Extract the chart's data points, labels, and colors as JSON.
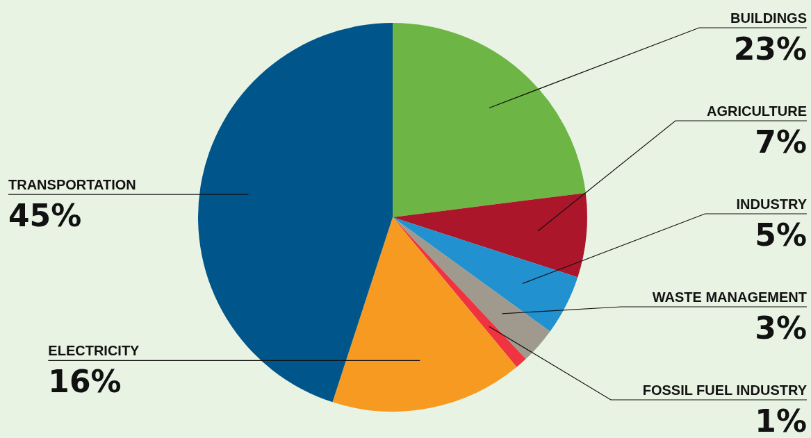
{
  "chart_data": {
    "type": "pie",
    "categories": [
      "BUILDINGS",
      "AGRICULTURE",
      "INDUSTRY",
      "WASTE MANAGEMENT",
      "FOSSIL FUEL INDUSTRY",
      "ELECTRICITY",
      "TRANSPORTATION"
    ],
    "values": [
      23,
      7,
      5,
      3,
      1,
      16,
      45
    ],
    "value_labels": [
      "23%",
      "7%",
      "5%",
      "3%",
      "1%",
      "16%",
      "45%"
    ],
    "colors": [
      "#6db545",
      "#ab162b",
      "#2191d0",
      "#a09a8e",
      "#ef3340",
      "#f69a22",
      "#00558b"
    ],
    "legend": false
  }
}
